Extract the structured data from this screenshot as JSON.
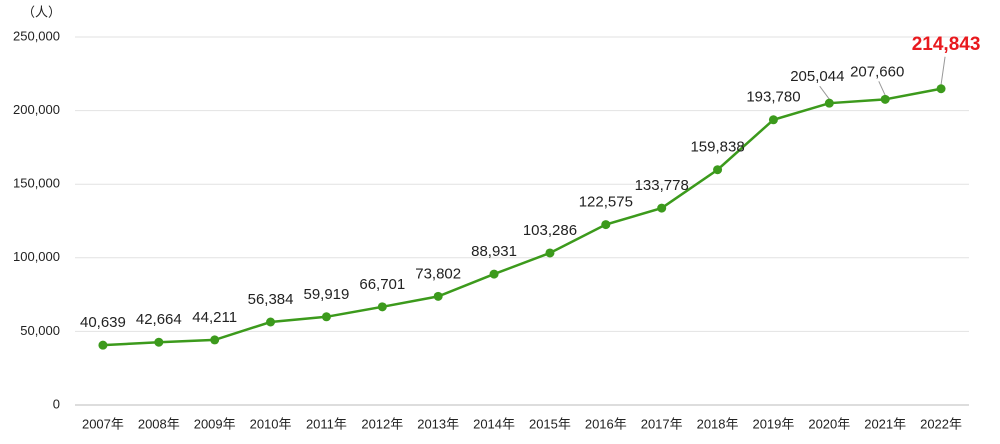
{
  "chart_data": {
    "type": "line",
    "y_unit": "（人）",
    "categories": [
      "2007年",
      "2008年",
      "2009年",
      "2010年",
      "2011年",
      "2012年",
      "2013年",
      "2014年",
      "2015年",
      "2016年",
      "2017年",
      "2018年",
      "2019年",
      "2020年",
      "2021年",
      "2022年"
    ],
    "series": [
      {
        "color": "#3c9a1c",
        "values": [
          40639,
          42664,
          44211,
          56384,
          59919,
          66701,
          73802,
          88931,
          103286,
          122575,
          133778,
          159838,
          193780,
          205044,
          207660,
          214843
        ],
        "value_labels": [
          "40,639",
          "42,664",
          "44,211",
          "56,384",
          "59,919",
          "66,701",
          "73,802",
          "88,931",
          "103,286",
          "122,575",
          "133,778",
          "159,838",
          "193,780",
          "205,044",
          "207,660",
          "214,843"
        ]
      }
    ],
    "highlight_color": "#e8191e",
    "ylim": [
      0,
      250000
    ],
    "yticks": [
      0,
      {
        "value": 50000,
        "label": "50,000"
      },
      {
        "value": 100000,
        "label": "100,000"
      },
      {
        "value": 150000,
        "label": "150,000"
      },
      {
        "value": 200000,
        "label": "200,000"
      },
      {
        "value": 250000,
        "label": "250,000"
      }
    ],
    "grid": true
  }
}
